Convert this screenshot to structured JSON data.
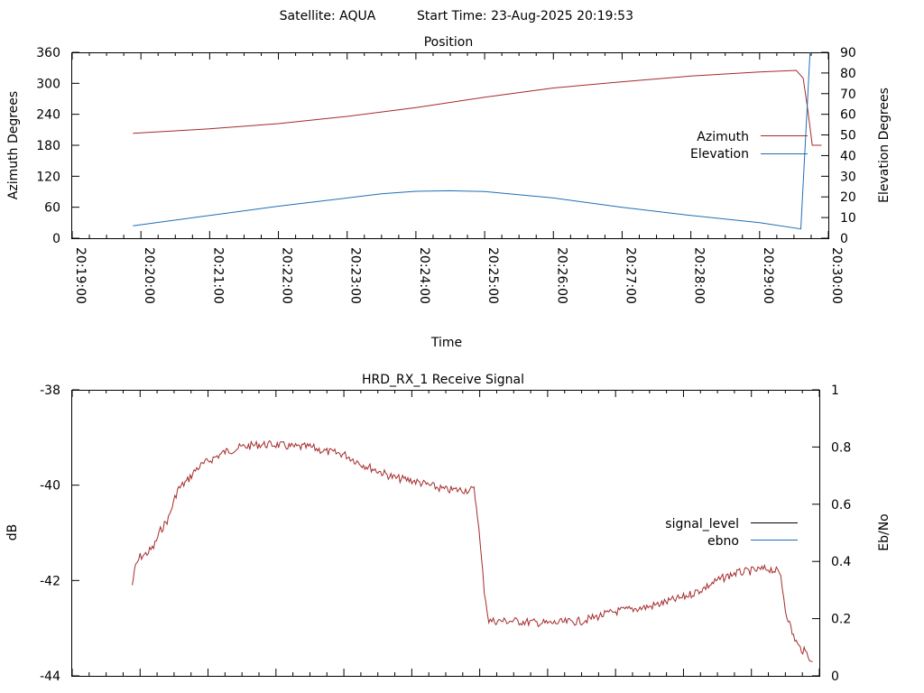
{
  "header": {
    "satellite": "Satellite: AQUA",
    "start_time": "Start Time: 23-Aug-2025 20:19:53"
  },
  "colors": {
    "azimuth": "#a52a2a",
    "elevation": "#1f6fb5",
    "signal_level": "#000000",
    "ebno": "#1f6fb5"
  },
  "chart_data": [
    {
      "type": "line",
      "title": "Position",
      "xlabel": "Time",
      "ylabel": "Azimuth Degrees",
      "y2label": "Elevation Degrees",
      "xlim": [
        "20:19:00",
        "20:30:00"
      ],
      "ylim": [
        0,
        360
      ],
      "y2lim": [
        0,
        90
      ],
      "x_ticks": [
        "20:19:00",
        "20:20:00",
        "20:21:00",
        "20:22:00",
        "20:23:00",
        "20:24:00",
        "20:25:00",
        "20:26:00",
        "20:27:00",
        "20:28:00",
        "20:29:00",
        "20:30:00"
      ],
      "y_ticks": [
        "0",
        "60",
        "120",
        "180",
        "240",
        "300",
        "360"
      ],
      "y2_ticks": [
        "0",
        "10",
        "20",
        "30",
        "40",
        "50",
        "60",
        "70",
        "80",
        "90"
      ],
      "legend_position": "right",
      "series": [
        {
          "name": "Azimuth",
          "axis": "y",
          "x": [
            "20:19:53",
            "20:20:30",
            "20:21:00",
            "20:22:00",
            "20:23:00",
            "20:24:00",
            "20:25:00",
            "20:26:00",
            "20:27:00",
            "20:28:00",
            "20:29:00",
            "20:29:32",
            "20:29:38",
            "20:29:42",
            "20:29:46",
            "20:29:54"
          ],
          "values": [
            203,
            208,
            212,
            222,
            236,
            253,
            273,
            291,
            303,
            314,
            322,
            325,
            310,
            250,
            180,
            180
          ]
        },
        {
          "name": "Elevation",
          "axis": "y2",
          "x": [
            "20:19:53",
            "20:21:00",
            "20:22:00",
            "20:23:00",
            "20:23:30",
            "20:24:00",
            "20:24:30",
            "20:25:00",
            "20:26:00",
            "20:27:00",
            "20:28:00",
            "20:29:00",
            "20:29:36",
            "20:29:44"
          ],
          "values": [
            6,
            11,
            15.5,
            19.5,
            21.5,
            22.7,
            23,
            22.6,
            19.5,
            15,
            11,
            7.5,
            4.5,
            90
          ]
        }
      ]
    },
    {
      "type": "line",
      "title": "HRD_RX_1 Receive Signal",
      "xlabel": "",
      "ylabel": "dB",
      "y2label": "Eb/No",
      "xlim": [
        "20:19:00",
        "20:30:00"
      ],
      "ylim": [
        -44,
        -38
      ],
      "y2lim": [
        0,
        1
      ],
      "y_ticks": [
        "-44",
        "-42",
        "-40",
        "-38"
      ],
      "y2_ticks": [
        "0",
        "0.2",
        "0.4",
        "0.6",
        "0.8",
        "1"
      ],
      "legend_position": "right",
      "series": [
        {
          "name": "signal_level",
          "axis": "y",
          "x": [
            "20:19:53",
            "20:19:56",
            "20:20:00",
            "20:20:05",
            "20:20:12",
            "20:20:18",
            "20:20:25",
            "20:20:33",
            "20:20:42",
            "20:20:50",
            "20:21:00",
            "20:21:15",
            "20:21:30",
            "20:21:45",
            "20:22:00",
            "20:22:15",
            "20:22:30",
            "20:22:45",
            "20:23:00",
            "20:23:15",
            "20:23:30",
            "20:23:45",
            "20:24:00",
            "20:24:15",
            "20:24:30",
            "20:24:45",
            "20:24:55",
            "20:24:58",
            "20:25:04",
            "20:25:08",
            "20:25:12",
            "20:25:30",
            "20:26:00",
            "20:26:30",
            "20:27:00",
            "20:27:30",
            "20:28:00",
            "20:28:15",
            "20:28:30",
            "20:28:45",
            "20:29:00",
            "20:29:15",
            "20:29:22",
            "20:29:26",
            "20:29:30",
            "20:29:36",
            "20:29:42",
            "20:29:50",
            "20:29:54"
          ],
          "values": [
            -42.1,
            -41.7,
            -41.5,
            -41.45,
            -41.3,
            -40.95,
            -40.7,
            -40.1,
            -39.9,
            -39.65,
            -39.5,
            -39.3,
            -39.2,
            -39.15,
            -39.15,
            -39.2,
            -39.2,
            -39.3,
            -39.35,
            -39.55,
            -39.7,
            -39.85,
            -39.9,
            -40.0,
            -40.1,
            -40.1,
            -40.1,
            -40.6,
            -42.2,
            -42.85,
            -42.85,
            -42.85,
            -42.9,
            -42.85,
            -42.65,
            -42.55,
            -42.35,
            -42.2,
            -42.0,
            -41.85,
            -41.8,
            -41.75,
            -41.8,
            -41.9,
            -42.6,
            -43.1,
            -43.4,
            -43.55,
            -43.7
          ]
        },
        {
          "name": "ebno",
          "axis": "y2",
          "x": [],
          "values": []
        }
      ]
    }
  ]
}
